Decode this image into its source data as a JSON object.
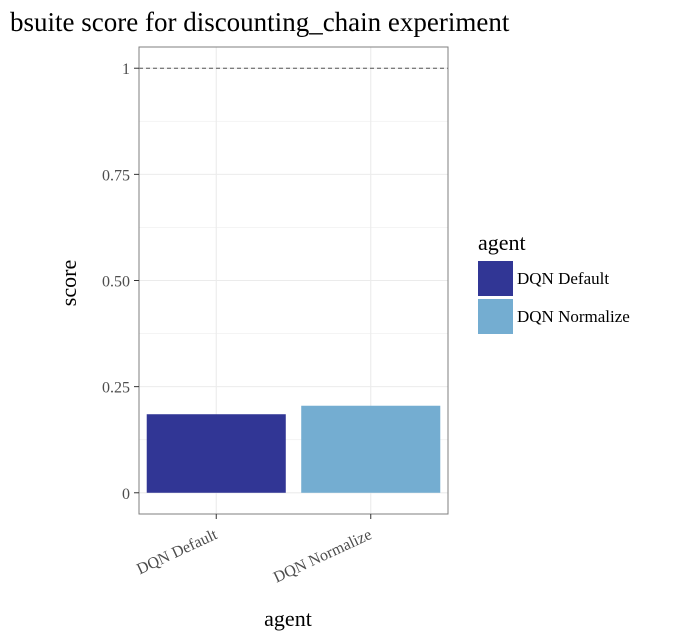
{
  "chart_data": {
    "type": "bar",
    "title": "bsuite score for discounting_chain experiment",
    "xlabel": "agent",
    "ylabel": "score",
    "categories": [
      "DQN Default",
      "DQN Normalize"
    ],
    "values": [
      0.185,
      0.205
    ],
    "colors": [
      "#313695",
      "#74add1"
    ],
    "ylim": [
      -0.05,
      1.05
    ],
    "yticks": [
      0,
      0.25,
      0.5,
      0.75,
      1
    ],
    "ytick_labels": [
      "0",
      "0.25",
      "0.50",
      "0.75",
      "1"
    ],
    "reference_line": 1,
    "grid": true,
    "legend": {
      "title": "agent",
      "position": "right",
      "entries": [
        "DQN Default",
        "DQN Normalize"
      ]
    }
  }
}
